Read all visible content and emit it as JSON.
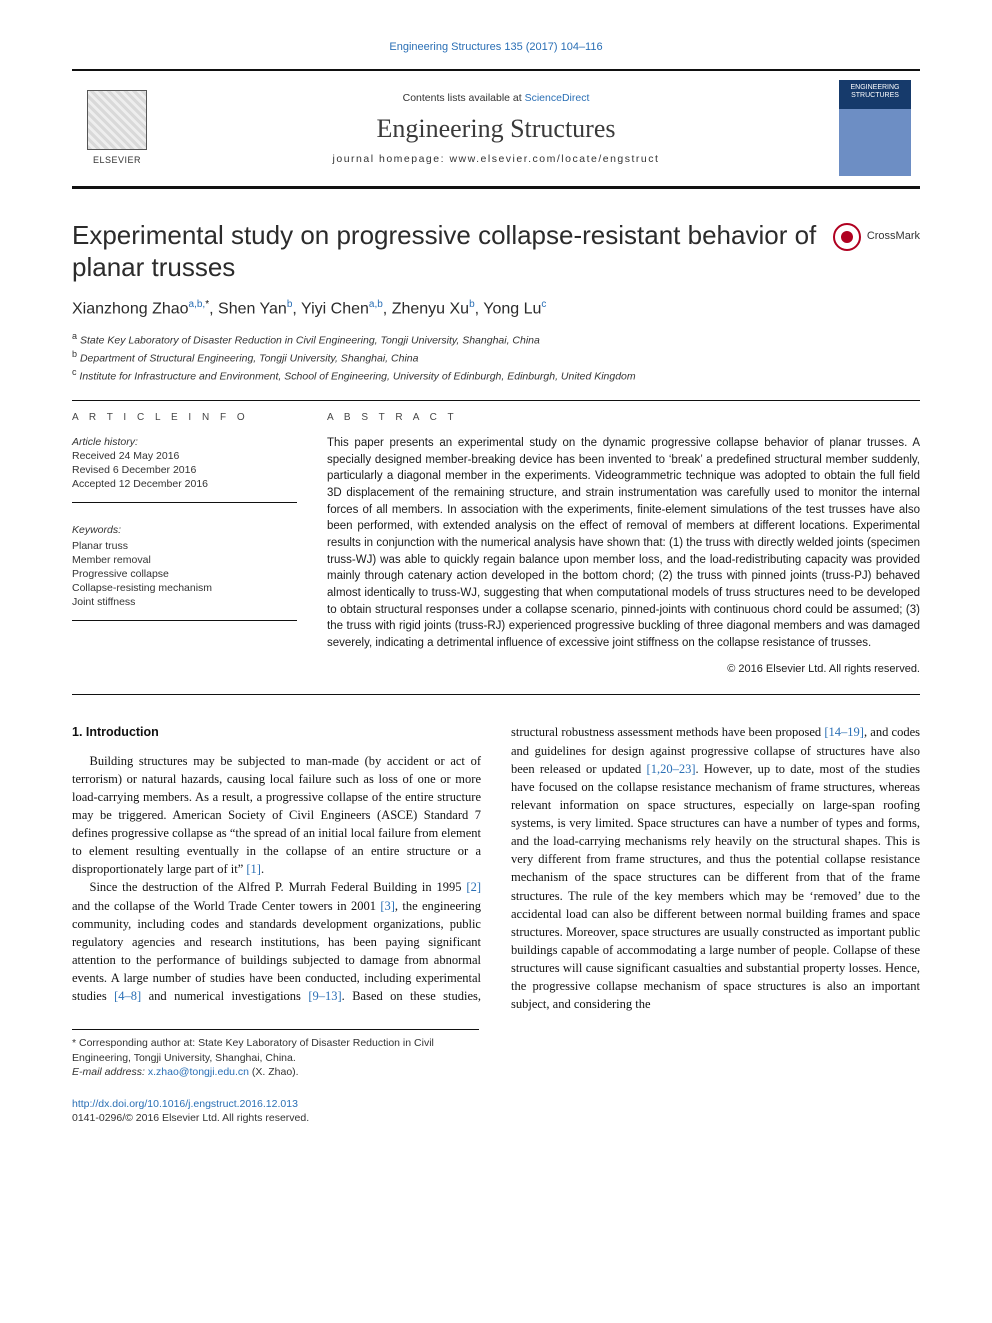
{
  "top_link": "Engineering Structures 135 (2017) 104–116",
  "banner": {
    "publisher_name": "ELSEVIER",
    "contents_prefix": "Contents lists available at ",
    "contents_link": "ScienceDirect",
    "journal_name": "Engineering Structures",
    "homepage_label": "journal homepage: www.elsevier.com/locate/engstruct",
    "cover_text": "ENGINEERING STRUCTURES"
  },
  "title": "Experimental study on progressive collapse-resistant behavior of planar trusses",
  "crossmark_label": "CrossMark",
  "authors_html": "Xianzhong Zhao",
  "authors": {
    "a1_name": "Xianzhong Zhao",
    "a1_aff": "a,b,",
    "a1_corr": "*",
    "a2_name": "Shen Yan",
    "a2_aff": "b",
    "a3_name": "Yiyi Chen",
    "a3_aff": "a,b",
    "a4_name": "Zhenyu Xu",
    "a4_aff": "b",
    "a5_name": "Yong Lu",
    "a5_aff": "c"
  },
  "affiliations": {
    "a": "State Key Laboratory of Disaster Reduction in Civil Engineering, Tongji University, Shanghai, China",
    "b": "Department of Structural Engineering, Tongji University, Shanghai, China",
    "c": "Institute for Infrastructure and Environment, School of Engineering, University of Edinburgh, Edinburgh, United Kingdom"
  },
  "article_info": {
    "heading": "A R T I C L E   I N F O",
    "history_label": "Article history:",
    "received": "Received 24 May 2016",
    "revised": "Revised 6 December 2016",
    "accepted": "Accepted 12 December 2016",
    "keywords_label": "Keywords:",
    "keywords": [
      "Planar truss",
      "Member removal",
      "Progressive collapse",
      "Collapse-resisting mechanism",
      "Joint stiffness"
    ]
  },
  "abstract": {
    "heading": "A B S T R A C T",
    "text": "This paper presents an experimental study on the dynamic progressive collapse behavior of planar trusses. A specially designed member-breaking device has been invented to ‘break’ a predefined structural member suddenly, particularly a diagonal member in the experiments. Videogrammetric technique was adopted to obtain the full field 3D displacement of the remaining structure, and strain instrumentation was carefully used to monitor the internal forces of all members. In association with the experiments, finite-element simulations of the test trusses have also been performed, with extended analysis on the effect of removal of members at different locations. Experimental results in conjunction with the numerical analysis have shown that: (1) the truss with directly welded joints (specimen truss-WJ) was able to quickly regain balance upon member loss, and the load-redistributing capacity was provided mainly through catenary action developed in the bottom chord; (2) the truss with pinned joints (truss-PJ) behaved almost identically to truss-WJ, suggesting that when computational models of truss structures need to be developed to obtain structural responses under a collapse scenario, pinned-joints with continuous chord could be assumed; (3) the truss with rigid joints (truss-RJ) experienced progressive buckling of three diagonal members and was damaged severely, indicating a detrimental influence of excessive joint stiffness on the collapse resistance of trusses.",
    "copyright": "© 2016 Elsevier Ltd. All rights reserved."
  },
  "body": {
    "section1_heading": "1. Introduction",
    "p1": "Building structures may be subjected to man-made (by accident or act of terrorism) or natural hazards, causing local failure such as loss of one or more load-carrying members. As a result, a progressive collapse of the entire structure may be triggered. American Society of Civil Engineers (ASCE) Standard 7 defines progressive collapse as “the spread of an initial local failure from element to element resulting eventually in the collapse of an entire structure or a disproportionately large part of it” ",
    "p1_ref": "[1]",
    "p1_end": ".",
    "p2a": "Since the destruction of the Alfred P. Murrah Federal Building in 1995 ",
    "p2_ref1": "[2]",
    "p2b": " and the collapse of the World Trade Center towers in 2001 ",
    "p2_ref2": "[3]",
    "p2c": ", the engineering community, including codes and standards development organizations, public regulatory agencies and research institutions, has been paying significant attention to the performance of buildings subjected to damage from abnormal events. A large number of studies have been conducted, including",
    "p3a": "experimental studies ",
    "p3_ref1": "[4–8]",
    "p3b": " and numerical investigations ",
    "p3_ref2": "[9–13]",
    "p3c": ". Based on these studies, structural robustness assessment methods have been proposed ",
    "p3_ref3": "[14–19]",
    "p3d": ", and codes and guidelines for design against progressive collapse of structures have also been released or updated ",
    "p3_ref4": "[1,20–23]",
    "p3e": ". However, up to date, most of the studies have focused on the collapse resistance mechanism of frame structures, whereas relevant information on space structures, especially on large-span roofing systems, is very limited. Space structures can have a number of types and forms, and the load-carrying mechanisms rely heavily on the structural shapes. This is very different from frame structures, and thus the potential collapse resistance mechanism of the space structures can be different from that of the frame structures. The rule of the key members which may be ‘removed’ due to the accidental load can also be different between normal building frames and space structures. Moreover, space structures are usually constructed as important public buildings capable of accommodating a large number of people. Collapse of these structures will cause significant casualties and substantial property losses. Hence, the progressive collapse mechanism of space structures is also an important subject, and considering the"
  },
  "footnote": {
    "corr": "* Corresponding author at: State Key Laboratory of Disaster Reduction in Civil Engineering, Tongji University, Shanghai, China.",
    "email_label": "E-mail address: ",
    "email": "x.zhao@tongji.edu.cn",
    "email_person": " (X. Zhao)."
  },
  "doi": {
    "link": "http://dx.doi.org/10.1016/j.engstruct.2016.12.013",
    "issn_line": "0141-0296/© 2016 Elsevier Ltd. All rights reserved."
  },
  "colors": {
    "link": "#2a6fb5",
    "text": "#111111",
    "rule": "#111111",
    "crossmark": "#b00020"
  }
}
